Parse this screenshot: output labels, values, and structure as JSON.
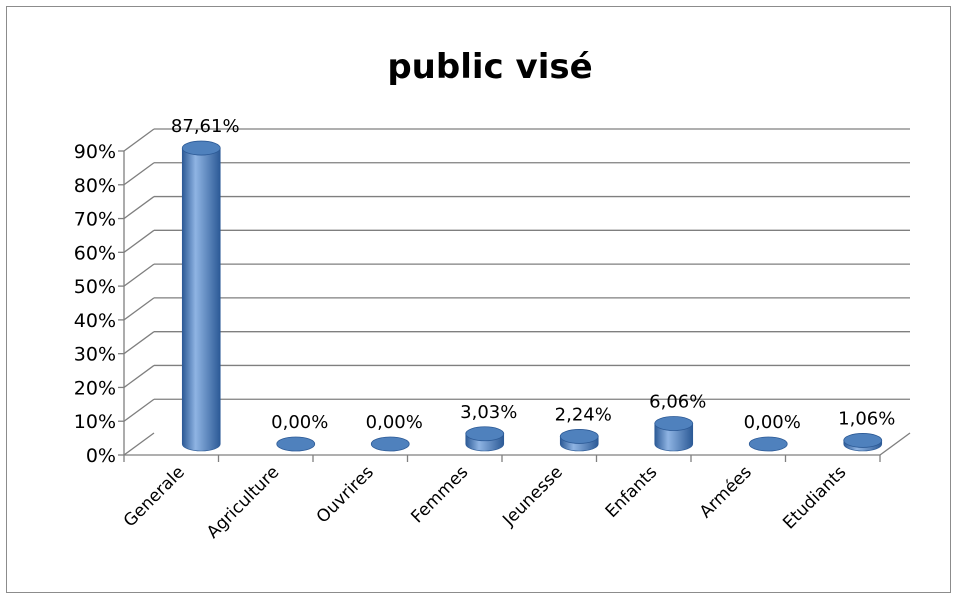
{
  "chart_data": {
    "type": "bar",
    "title": "public visé",
    "categories": [
      "Generale",
      "Agriculture",
      "Ouvrires",
      "Femmes",
      "Jeunesse",
      "Enfants",
      "Armées",
      "Etudiants"
    ],
    "series": [
      {
        "values": [
          87.61,
          0.0,
          0.0,
          3.03,
          2.24,
          6.06,
          0.0,
          1.06
        ],
        "data_labels": [
          "87,61%",
          "0,00%",
          "0,00%",
          "3,03%",
          "2,24%",
          "6,06%",
          "0,00%",
          "1,06%"
        ]
      }
    ],
    "yticks": [
      "0%",
      "10%",
      "20%",
      "30%",
      "40%",
      "50%",
      "60%",
      "70%",
      "80%",
      "90%"
    ],
    "ylim": [
      0,
      90
    ],
    "style": "3d-cylinder",
    "grid": true,
    "legend": "none",
    "colors": {
      "bar_main": "#4f81bd",
      "bar_dark": "#2c5a96",
      "bar_light": "#8fb4e3",
      "grid": "#7f7f7f"
    }
  }
}
